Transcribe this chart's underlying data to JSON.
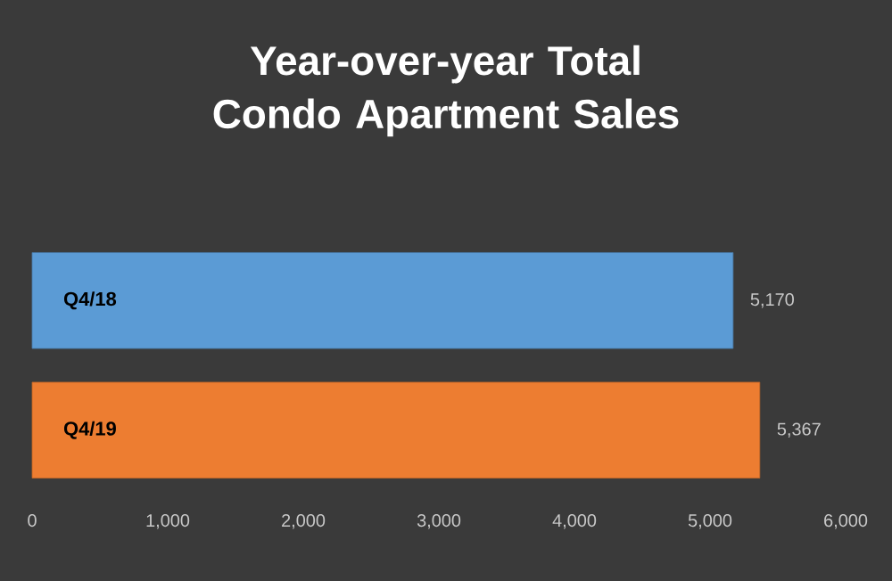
{
  "chart_data": {
    "type": "bar",
    "orientation": "horizontal",
    "title": "Year-over-year Total Condo Apartment Sales",
    "categories": [
      "Q4/18",
      "Q4/19"
    ],
    "values": [
      5170,
      5367
    ],
    "colors": [
      "#5b9bd5",
      "#ed7d31"
    ],
    "value_labels": [
      "5,170",
      "5,367"
    ],
    "xlim": [
      0,
      6000
    ],
    "xticks": [
      {
        "value": 0,
        "label": "0"
      },
      {
        "value": 1000,
        "label": "1,000"
      },
      {
        "value": 2000,
        "label": "2,000"
      },
      {
        "value": 3000,
        "label": "3,000"
      },
      {
        "value": 4000,
        "label": "4,000"
      },
      {
        "value": 5000,
        "label": "5,000"
      },
      {
        "value": 6000,
        "label": "6,000"
      }
    ]
  }
}
